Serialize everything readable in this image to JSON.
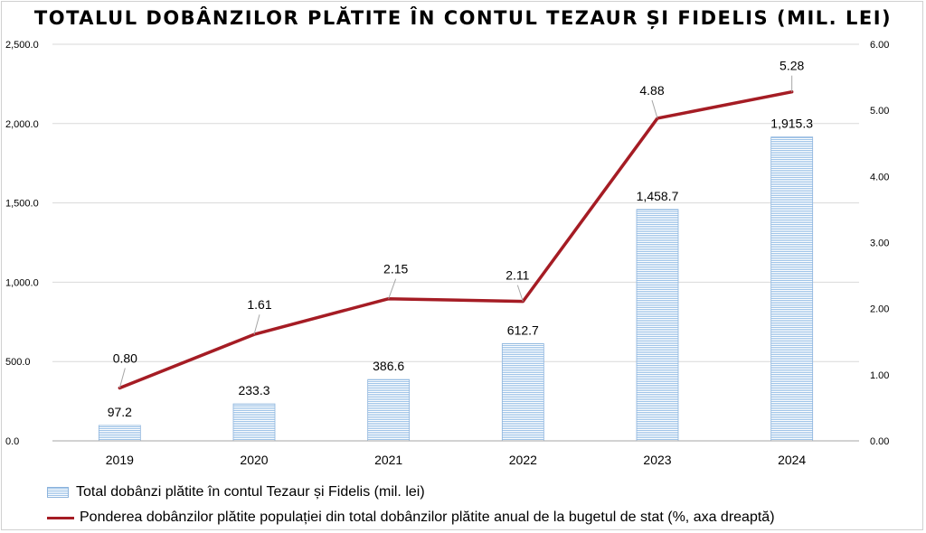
{
  "chart_data": {
    "type": "bar",
    "title": "TOTALUL DOBÂNZILOR PLĂTITE ÎN CONTUL TEZAUR ȘI FIDELIS (MIL. LEI)",
    "categories": [
      "2019",
      "2020",
      "2021",
      "2022",
      "2023",
      "2024"
    ],
    "series": [
      {
        "name": "Total dobânzi plătite în contul Tezaur și Fidelis (mil. lei)",
        "type": "bar",
        "axis": "left",
        "values": [
          97.2,
          233.3,
          386.6,
          612.7,
          1458.7,
          1915.3
        ],
        "labels": [
          "97.2",
          "233.3",
          "386.6",
          "612.7",
          "1,458.7",
          "1,915.3"
        ],
        "color": "#9fc4e8"
      },
      {
        "name": "Ponderea dobânzilor plătite populației din total dobânzilor plătite anual de la bugetul de stat (%, axa dreaptă)",
        "type": "line",
        "axis": "right",
        "values": [
          0.8,
          1.61,
          2.15,
          2.11,
          4.88,
          5.28
        ],
        "labels": [
          "0.80",
          "1.61",
          "2.15",
          "2.11",
          "4.88",
          "5.28"
        ],
        "color": "#a51c24"
      }
    ],
    "y_left": {
      "ylim": [
        0,
        2500
      ],
      "ticks": [
        0,
        500,
        1000,
        1500,
        2000,
        2500
      ],
      "tick_labels": [
        "0.0",
        "500.0",
        "1,000.0",
        "1,500.0",
        "2,000.0",
        "2,500.0"
      ]
    },
    "y_right": {
      "ylim": [
        0,
        6
      ],
      "ticks": [
        0,
        1,
        2,
        3,
        4,
        5,
        6
      ],
      "tick_labels": [
        "0.00",
        "1.00",
        "2.00",
        "3.00",
        "4.00",
        "5.00",
        "6.00"
      ]
    },
    "grid": true,
    "legend_position": "bottom-left"
  }
}
